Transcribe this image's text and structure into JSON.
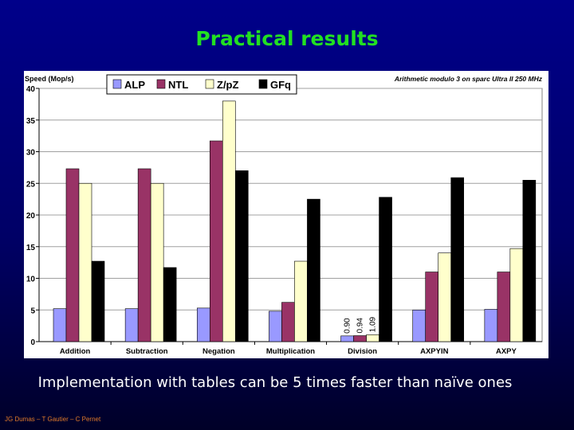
{
  "slide": {
    "title": "Practical results",
    "caption": "Implementation with tables can be 5 times faster than naïve ones",
    "footer": "JG Dumas – T Gautier – C Pernet"
  },
  "chart_data": {
    "type": "bar",
    "title": "Arithmetic modulo 3 on sparc Ultra II 250 MHz",
    "ylabel": "Speed (Mop/s)",
    "xlabel": "",
    "ylim": [
      0,
      40
    ],
    "yticks": [
      0,
      5,
      10,
      15,
      20,
      25,
      30,
      35,
      40
    ],
    "grid": true,
    "legend_position": "top-left",
    "categories": [
      "Addition",
      "Subtraction",
      "Negation",
      "Multiplication",
      "Division",
      "AXPYIN",
      "AXPY"
    ],
    "series": [
      {
        "name": "ALP",
        "color": "#9999ff",
        "values": [
          5.2,
          5.2,
          5.3,
          4.8,
          0.9,
          5.0,
          5.1
        ]
      },
      {
        "name": "NTL",
        "color": "#993366",
        "values": [
          27.3,
          27.3,
          31.7,
          6.2,
          0.94,
          11.0,
          11.0
        ]
      },
      {
        "name": "Z/pZ",
        "color": "#ffffcc",
        "values": [
          25.0,
          25.0,
          38.0,
          12.7,
          1.09,
          14.0,
          14.7
        ]
      },
      {
        "name": "GFq",
        "color": "#000000",
        "values": [
          12.7,
          11.7,
          27.0,
          22.5,
          22.8,
          25.9,
          25.5
        ]
      }
    ],
    "data_labels": [
      {
        "category": "Division",
        "series": "ALP",
        "text": "0.90"
      },
      {
        "category": "Division",
        "series": "NTL",
        "text": "0.94"
      },
      {
        "category": "Division",
        "series": "Z/pZ",
        "text": "1.09"
      }
    ]
  }
}
